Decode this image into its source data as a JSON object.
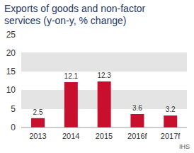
{
  "chart_data": {
    "type": "bar",
    "title": "Exports of goods and non-factor services (y-on-y, % change)",
    "source": "IHS",
    "categories": [
      "2013",
      "2014",
      "2015",
      "2016f",
      "2017f"
    ],
    "values": [
      2.5,
      12.1,
      12.3,
      3.6,
      3.2
    ],
    "color": "#c8102e",
    "ylim": [
      0,
      25
    ],
    "yticks": [
      0,
      5,
      10,
      15,
      20,
      25
    ],
    "grid": true,
    "data_labels": true
  }
}
